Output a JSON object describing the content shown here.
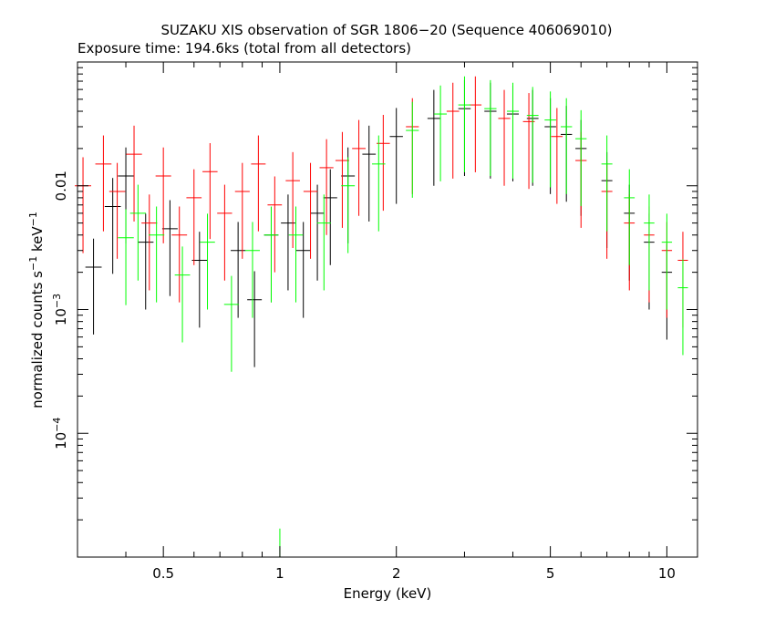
{
  "chart_data": {
    "type": "scatter",
    "title": "SUZAKU XIS observation of SGR 1806−20 (Sequence 406069010)",
    "subtitle": "Exposure time: 194.6ks (total from all detectors)",
    "xlabel": "Energy (keV)",
    "ylabel": {
      "base": "normalized counts s",
      "exp1": "−1",
      "mid": " keV",
      "exp2": "−1"
    },
    "x_scale": "log",
    "y_scale": "log",
    "xlim": [
      0.3,
      12.0
    ],
    "ylim": [
      1e-05,
      0.1
    ],
    "x_ticks": [
      {
        "value": 0.5,
        "label": "0.5"
      },
      {
        "value": 1,
        "label": "1"
      },
      {
        "value": 2,
        "label": "2"
      },
      {
        "value": 5,
        "label": "5"
      },
      {
        "value": 10,
        "label": "10"
      }
    ],
    "y_ticks": [
      {
        "value": 0.0001,
        "base": "10",
        "exp": "−4"
      },
      {
        "value": 0.001,
        "base": "10",
        "exp": "−3"
      },
      {
        "value": 0.01,
        "base": "0.01",
        "exp": ""
      }
    ],
    "grid": false,
    "legend": "none",
    "series": [
      {
        "color": "#000000",
        "points": [
          {
            "e": 0.33,
            "y": 0.0022
          },
          {
            "e": 0.37,
            "y": 0.0068
          },
          {
            "e": 0.4,
            "y": 0.012
          },
          {
            "e": 0.45,
            "y": 0.0035
          },
          {
            "e": 0.52,
            "y": 0.0045
          },
          {
            "e": 0.62,
            "y": 0.0025
          },
          {
            "e": 0.78,
            "y": 0.003
          },
          {
            "e": 0.86,
            "y": 0.0012
          },
          {
            "e": 0.95,
            "y": 0.004
          },
          {
            "e": 1.05,
            "y": 0.005
          },
          {
            "e": 1.15,
            "y": 0.003
          },
          {
            "e": 1.25,
            "y": 0.006
          },
          {
            "e": 1.35,
            "y": 0.008
          },
          {
            "e": 1.5,
            "y": 0.012
          },
          {
            "e": 1.7,
            "y": 0.018
          },
          {
            "e": 2.0,
            "y": 0.025
          },
          {
            "e": 2.5,
            "y": 0.035
          },
          {
            "e": 3.0,
            "y": 0.042
          },
          {
            "e": 3.5,
            "y": 0.04
          },
          {
            "e": 4.0,
            "y": 0.038
          },
          {
            "e": 4.5,
            "y": 0.035
          },
          {
            "e": 5.0,
            "y": 0.03
          },
          {
            "e": 5.5,
            "y": 0.026
          },
          {
            "e": 6.0,
            "y": 0.02
          },
          {
            "e": 7.0,
            "y": 0.011
          },
          {
            "e": 8.0,
            "y": 0.006
          },
          {
            "e": 9.0,
            "y": 0.0035
          },
          {
            "e": 10.0,
            "y": 0.002
          }
        ]
      },
      {
        "color": "#ff0000",
        "points": [
          {
            "e": 0.31,
            "y": 0.01
          },
          {
            "e": 0.35,
            "y": 0.015
          },
          {
            "e": 0.38,
            "y": 0.009
          },
          {
            "e": 0.42,
            "y": 0.018
          },
          {
            "e": 0.46,
            "y": 0.005
          },
          {
            "e": 0.5,
            "y": 0.012
          },
          {
            "e": 0.55,
            "y": 0.004
          },
          {
            "e": 0.6,
            "y": 0.008
          },
          {
            "e": 0.66,
            "y": 0.013
          },
          {
            "e": 0.72,
            "y": 0.006
          },
          {
            "e": 0.8,
            "y": 0.009
          },
          {
            "e": 0.88,
            "y": 0.015
          },
          {
            "e": 0.97,
            "y": 0.007
          },
          {
            "e": 1.08,
            "y": 0.011
          },
          {
            "e": 1.2,
            "y": 0.009
          },
          {
            "e": 1.32,
            "y": 0.014
          },
          {
            "e": 1.45,
            "y": 0.016
          },
          {
            "e": 1.6,
            "y": 0.02
          },
          {
            "e": 1.85,
            "y": 0.022
          },
          {
            "e": 2.2,
            "y": 0.03
          },
          {
            "e": 2.8,
            "y": 0.04
          },
          {
            "e": 3.2,
            "y": 0.045
          },
          {
            "e": 3.8,
            "y": 0.035
          },
          {
            "e": 4.4,
            "y": 0.033
          },
          {
            "e": 5.2,
            "y": 0.025
          },
          {
            "e": 6.0,
            "y": 0.016
          },
          {
            "e": 7.0,
            "y": 0.009
          },
          {
            "e": 8.0,
            "y": 0.005
          },
          {
            "e": 9.0,
            "y": 0.004
          },
          {
            "e": 10.0,
            "y": 0.003
          },
          {
            "e": 11.0,
            "y": 0.0025
          }
        ]
      },
      {
        "color": "#00ff00",
        "points": [
          {
            "e": 0.4,
            "y": 0.0038
          },
          {
            "e": 0.43,
            "y": 0.006
          },
          {
            "e": 0.48,
            "y": 0.004
          },
          {
            "e": 0.56,
            "y": 0.0019
          },
          {
            "e": 0.65,
            "y": 0.0035
          },
          {
            "e": 0.75,
            "y": 0.0011
          },
          {
            "e": 0.85,
            "y": 0.003
          },
          {
            "e": 0.95,
            "y": 0.004
          },
          {
            "e": 1.0,
            "y": 1e-05
          },
          {
            "e": 1.1,
            "y": 0.004
          },
          {
            "e": 1.3,
            "y": 0.005
          },
          {
            "e": 1.5,
            "y": 0.01
          },
          {
            "e": 1.8,
            "y": 0.015
          },
          {
            "e": 2.2,
            "y": 0.028
          },
          {
            "e": 2.6,
            "y": 0.038
          },
          {
            "e": 3.0,
            "y": 0.045
          },
          {
            "e": 3.5,
            "y": 0.042
          },
          {
            "e": 4.0,
            "y": 0.04
          },
          {
            "e": 4.5,
            "y": 0.037
          },
          {
            "e": 5.0,
            "y": 0.034
          },
          {
            "e": 5.5,
            "y": 0.03
          },
          {
            "e": 6.0,
            "y": 0.024
          },
          {
            "e": 7.0,
            "y": 0.015
          },
          {
            "e": 8.0,
            "y": 0.008
          },
          {
            "e": 9.0,
            "y": 0.005
          },
          {
            "e": 10.0,
            "y": 0.0035
          },
          {
            "e": 11.0,
            "y": 0.0015
          }
        ]
      }
    ]
  }
}
